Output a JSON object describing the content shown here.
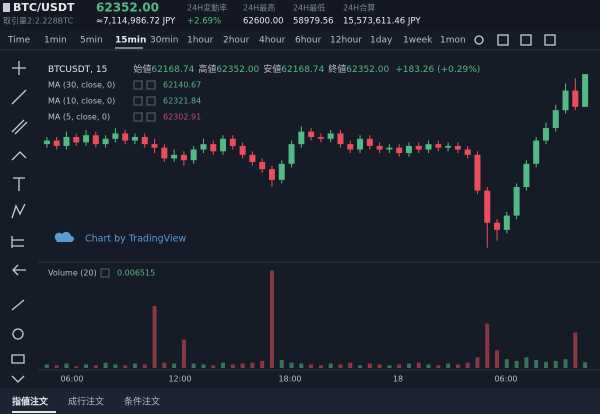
{
  "header": {
    "pair": "BTC/USDT",
    "price": "62352.00",
    "volume_label": "取引量2:2.228BTC",
    "price_jpy": "≈7,114,986.72 JPY",
    "stats": [
      {
        "label": "24H変動率",
        "value": "+2.69%"
      },
      {
        "label": "24H最高",
        "value": "62600.00"
      },
      {
        "label": "24H最低",
        "value": "58979.56"
      },
      {
        "label": "24H合算",
        "value": "15,573,611.46 JPY"
      }
    ]
  },
  "toolbar": {
    "time": "Time",
    "intervals": [
      "1min",
      "5min",
      "15min",
      "30min",
      "1hour",
      "2hour",
      "4hour",
      "6hour",
      "12hour",
      "1day",
      "1week",
      "1mon"
    ],
    "active_interval": 2
  },
  "legend": {
    "symbol": "BTCUSDT, 15",
    "open_label": "始値",
    "open": "62168.74",
    "high_label": "高値",
    "high": "62352.00",
    "low_label": "安値",
    "low": "62168.74",
    "close_label": "終値",
    "close": "62352.00",
    "change": "+183.26 (+0.29%)",
    "ma": [
      {
        "name": "MA (30, close, 0)",
        "value": "62140.67",
        "color": "#53b987"
      },
      {
        "name": "MA (10, close, 0)",
        "value": "62321.84",
        "color": "#53b987"
      },
      {
        "name": "MA (5, close, 0)",
        "value": "62302.91",
        "color": "#c0506a"
      }
    ],
    "watermark": "Chart by TradingView",
    "volume_name": "Volume (20)",
    "volume_value": "0.006515"
  },
  "chart": {
    "type": "candlestick",
    "up_color": "#53b987",
    "down_color": "#eb4d5c",
    "ylim": [
      61300,
      62420
    ],
    "volume_lim": [
      0,
      0.115
    ],
    "open": [
      61960,
      61980,
      61950,
      62000,
      61970,
      62010,
      61960,
      61990,
      62020,
      61980,
      62000,
      61960,
      61940,
      61880,
      61900,
      61870,
      61930,
      61960,
      61920,
      61990,
      61950,
      61900,
      61860,
      61820,
      61760,
      61850,
      61960,
      62030,
      62000,
      61990,
      62020,
      61960,
      61930,
      61990,
      61950,
      61930,
      61940,
      61910,
      61950,
      61930,
      61960,
      61940,
      61950,
      61930,
      61900,
      61700,
      61520,
      61480,
      61560,
      61720,
      61850,
      61980,
      62050,
      62150,
      62260,
      62168.74
    ],
    "high": [
      62000,
      62000,
      62030,
      62020,
      62040,
      62030,
      62010,
      62050,
      62040,
      62020,
      62020,
      61990,
      61960,
      61930,
      61920,
      61950,
      61990,
      61980,
      62010,
      62010,
      61970,
      61920,
      61880,
      61840,
      61870,
      61980,
      62060,
      62050,
      62020,
      62040,
      62040,
      61980,
      62010,
      62010,
      61970,
      61960,
      61960,
      61970,
      61970,
      61980,
      61980,
      61970,
      61970,
      61950,
      61920,
      61720,
      61540,
      61580,
      61740,
      61870,
      62000,
      62080,
      62180,
      62300,
      62330,
      62352
    ],
    "low": [
      61940,
      61930,
      61930,
      61950,
      61950,
      61940,
      61940,
      61970,
      61960,
      61960,
      61940,
      61910,
      61860,
      61860,
      61840,
      61850,
      61910,
      61900,
      61900,
      61930,
      61880,
      61840,
      61800,
      61720,
      61740,
      61830,
      61940,
      61980,
      61970,
      61970,
      61940,
      61910,
      61910,
      61930,
      61910,
      61910,
      61890,
      61890,
      61910,
      61910,
      61920,
      61920,
      61910,
      61880,
      61680,
      61380,
      61420,
      61460,
      61540,
      61700,
      61830,
      61960,
      62030,
      62130,
      62150,
      62168.74
    ],
    "close": [
      61980,
      61950,
      62000,
      61970,
      62010,
      61960,
      61990,
      62020,
      61980,
      62000,
      61960,
      61940,
      61880,
      61900,
      61870,
      61930,
      61960,
      61920,
      61990,
      61950,
      61900,
      61860,
      61820,
      61760,
      61850,
      61960,
      62030,
      62000,
      61990,
      62020,
      61960,
      61930,
      61990,
      61950,
      61930,
      61940,
      61910,
      61950,
      61930,
      61960,
      61940,
      61950,
      61930,
      61900,
      61700,
      61520,
      61480,
      61560,
      61720,
      61850,
      61980,
      62050,
      62150,
      62260,
      62168.74,
      62352
    ],
    "volume": [
      0.004,
      0.003,
      0.005,
      0.002,
      0.004,
      0.003,
      0.006,
      0.004,
      0.003,
      0.005,
      0.004,
      0.07,
      0.006,
      0.005,
      0.032,
      0.005,
      0.004,
      0.003,
      0.006,
      0.004,
      0.005,
      0.006,
      0.008,
      0.11,
      0.009,
      0.006,
      0.005,
      0.004,
      0.003,
      0.005,
      0.004,
      0.006,
      0.003,
      0.005,
      0.004,
      0.003,
      0.004,
      0.005,
      0.006,
      0.004,
      0.003,
      0.005,
      0.004,
      0.006,
      0.012,
      0.05,
      0.02,
      0.01,
      0.008,
      0.012,
      0.009,
      0.007,
      0.008,
      0.01,
      0.04,
      0.006515
    ],
    "time_labels": [
      "06:00",
      "12:00",
      "18:00",
      "18",
      "06:00"
    ]
  },
  "tabs": [
    "指値注文",
    "成行注文",
    "条件注文"
  ]
}
